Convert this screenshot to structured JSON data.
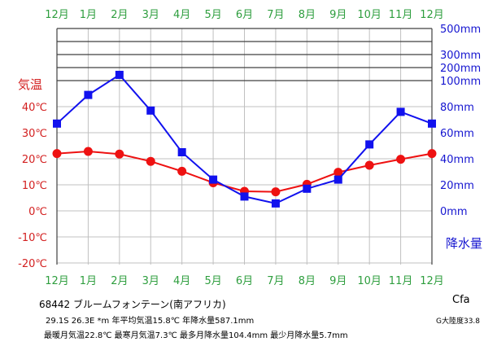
{
  "chart_data": {
    "type": "line",
    "categories": [
      "12月",
      "1月",
      "2月",
      "3月",
      "4月",
      "5月",
      "6月",
      "7月",
      "8月",
      "9月",
      "10月",
      "11月",
      "12月"
    ],
    "temp_axis": {
      "label": "気温",
      "ticks": [
        "40℃",
        "30℃",
        "20℃",
        "10℃",
        "0℃",
        "-10℃",
        "-20℃"
      ],
      "tick_values": [
        40,
        30,
        20,
        10,
        0,
        -10,
        -20
      ],
      "ylim": [
        -20,
        60
      ]
    },
    "precip_axis": {
      "label": "降水量",
      "ticks": [
        "500mm",
        "300mm",
        "200mm",
        "100mm",
        "80mm",
        "60mm",
        "40mm",
        "20mm",
        "0mm"
      ],
      "tick_values": [
        500,
        300,
        200,
        100,
        80,
        60,
        40,
        20,
        0
      ],
      "linear_range": [
        0,
        100
      ]
    },
    "series": [
      {
        "name": "気温",
        "axis": "temp",
        "color": "#ee1111",
        "values": [
          22.0,
          22.8,
          21.8,
          19.0,
          15.2,
          10.8,
          7.5,
          7.3,
          10.2,
          14.8,
          17.5,
          19.8,
          22.0
        ]
      },
      {
        "name": "降水量",
        "axis": "precip",
        "color": "#1111ee",
        "values": [
          67.0,
          89.0,
          104.4,
          77.0,
          45.0,
          24.0,
          11.0,
          5.7,
          17.0,
          24.0,
          51.0,
          76.0,
          67.0
        ]
      }
    ],
    "grid": true
  },
  "caption": {
    "station": "68442 ブルームフォンテーン(南アフリカ)",
    "climate": "Cfa",
    "coords": "29.1S 26.3E *m 年平均気温15.8℃ 年降水量587.1mm",
    "continentality": "G大陸度33.8",
    "extremes": "最暖月気温22.8℃ 最寒月気温7.3℃ 最多月降水量104.4mm 最少月降水量5.7mm"
  }
}
